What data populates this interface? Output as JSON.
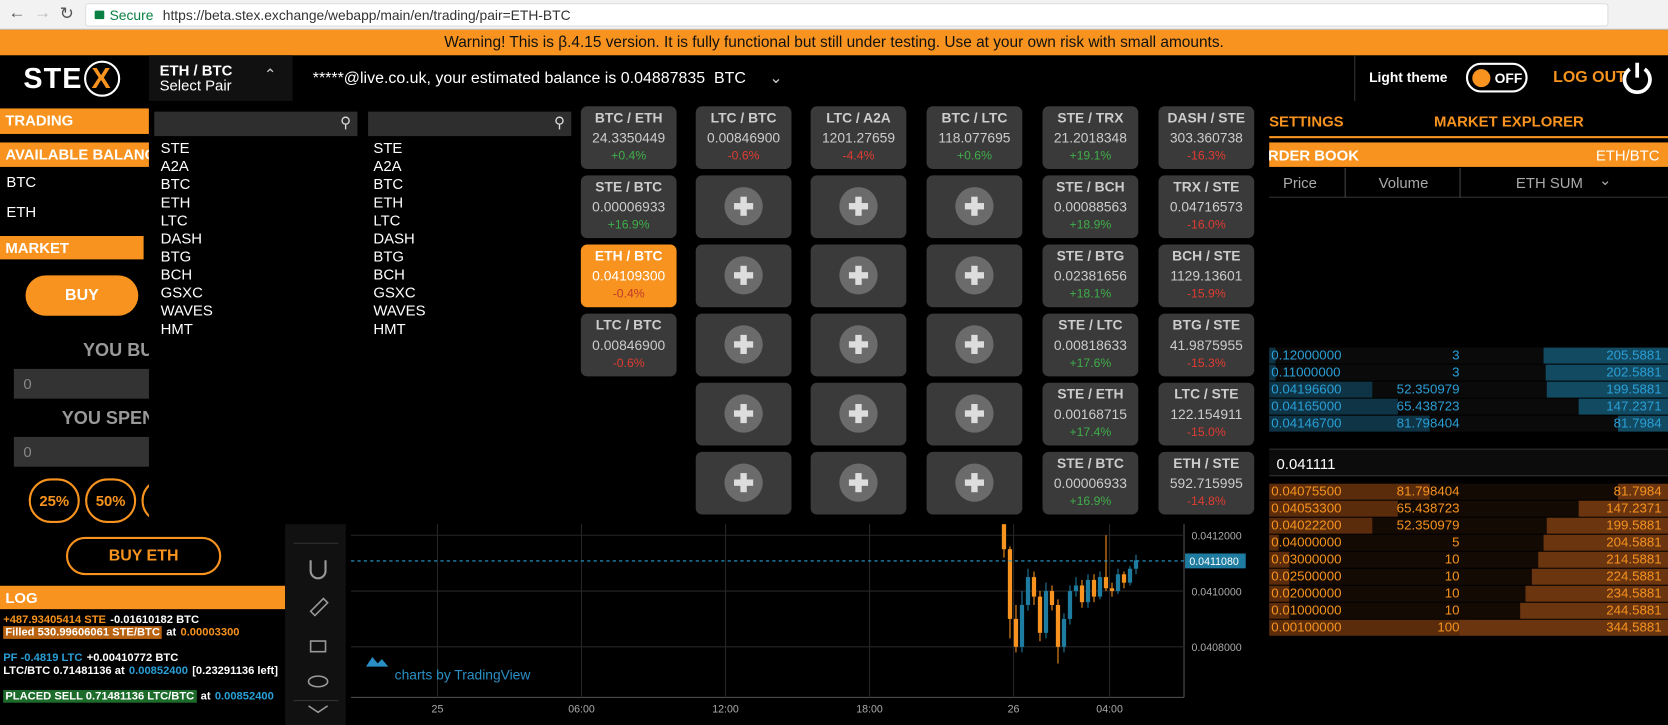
{
  "browser": {
    "secure": "Secure",
    "url": "https://beta.stex.exchange/webapp/main/en/trading/pair=ETH-BTC"
  },
  "warning": "Warning! This is β.4.15 version. It is fully functional but still under testing. Use at your own risk with small amounts.",
  "header": {
    "logo_text": "STE",
    "logo_mark": "X",
    "pair": "ETH / BTC",
    "select_pair": "Select Pair",
    "balance_text": "*****@live.co.uk, your estimated balance is 0.04887835",
    "balance_currency": "BTC",
    "theme_label": "Light theme",
    "theme_toggle": "OFF",
    "logout": "LOG OUT"
  },
  "left": {
    "trading": "TRADING",
    "available_balance": "AVAILABLE BALANCE",
    "balances": [
      "BTC",
      "ETH"
    ],
    "market": "MARKET",
    "buy": "BUY",
    "you_buy": "YOU BUY",
    "buy_amount": "0",
    "you_spend": "YOU SPEND",
    "spend_amount": "0",
    "percent_buttons": [
      "25%",
      "50%"
    ],
    "buy_eth": "BUY ETH"
  },
  "dropdown": {
    "lists": [
      [
        "STE",
        "A2A",
        "BTC",
        "ETH",
        "LTC",
        "DASH",
        "BTG",
        "BCH",
        "GSXC",
        "WAVES",
        "HMT"
      ],
      [
        "STE",
        "A2A",
        "BTC",
        "ETH",
        "LTC",
        "DASH",
        "BTG",
        "BCH",
        "GSXC",
        "WAVES",
        "HMT"
      ]
    ]
  },
  "tiles": [
    [
      {
        "pair": "BTC / ETH",
        "price": "24.3350449",
        "change": "+0.4%"
      },
      {
        "pair": "STE / BTC",
        "price": "0.00006933",
        "change": "+16.9%"
      },
      {
        "pair": "ETH / BTC",
        "price": "0.04109300",
        "change": "-0.4%"
      },
      {
        "pair": "LTC / BTC",
        "price": "0.00846900",
        "change": "-0.6%"
      }
    ],
    [
      {
        "pair": "LTC / BTC",
        "price": "0.00846900",
        "change": "-0.6%"
      },
      null,
      null,
      null,
      null,
      null
    ],
    [
      {
        "pair": "LTC / A2A",
        "price": "1201.27659",
        "change": "-4.4%"
      },
      null,
      null,
      null,
      null,
      null
    ],
    [
      {
        "pair": "BTC / LTC",
        "price": "118.077695",
        "change": "+0.6%"
      },
      null,
      null,
      null,
      null,
      null
    ],
    [
      {
        "pair": "STE / TRX",
        "price": "21.2018348",
        "change": "+19.1%"
      },
      {
        "pair": "STE / BCH",
        "price": "0.00088563",
        "change": "+18.9%"
      },
      {
        "pair": "STE / BTG",
        "price": "0.02381656",
        "change": "+18.1%"
      },
      {
        "pair": "STE / LTC",
        "price": "0.00818633",
        "change": "+17.6%"
      },
      {
        "pair": "STE / ETH",
        "price": "0.00168715",
        "change": "+17.4%"
      },
      {
        "pair": "STE / BTC",
        "price": "0.00006933",
        "change": "+16.9%"
      }
    ],
    [
      {
        "pair": "DASH / STE",
        "price": "303.360738",
        "change": "-16.3%"
      },
      {
        "pair": "TRX / STE",
        "price": "0.04716573",
        "change": "-16.0%"
      },
      {
        "pair": "BCH / STE",
        "price": "1129.13601",
        "change": "-15.9%"
      },
      {
        "pair": "BTG / STE",
        "price": "41.9875955",
        "change": "-15.3%"
      },
      {
        "pair": "LTC / STE",
        "price": "122.154911",
        "change": "-15.0%"
      },
      {
        "pair": "ETH / STE",
        "price": "592.715995",
        "change": "-14.8%"
      }
    ]
  ],
  "order_book": {
    "tabs": [
      "SETTINGS",
      "MARKET EXPLORER"
    ],
    "title": "ORDER BOOK",
    "pair": "ETH/BTC",
    "columns": [
      "Price",
      "Volume",
      "ETH SUM"
    ],
    "asks": [
      [
        "0.12000000",
        "3",
        "205.5881"
      ],
      [
        "0.11000000",
        "3",
        "202.5881"
      ],
      [
        "0.04196600",
        "52.350979",
        "199.5881"
      ],
      [
        "0.04165000",
        "65.438723",
        "147.2371"
      ],
      [
        "0.04146700",
        "81.798404",
        "81.7984"
      ]
    ],
    "mid": "0.041111",
    "bids": [
      [
        "0.04075500",
        "81.798404",
        "81.7984"
      ],
      [
        "0.04053300",
        "65.438723",
        "147.2371"
      ],
      [
        "0.04022200",
        "52.350979",
        "199.5881"
      ],
      [
        "0.04000000",
        "5",
        "204.5881"
      ],
      [
        "0.03000000",
        "10",
        "214.5881"
      ],
      [
        "0.02500000",
        "10",
        "224.5881"
      ],
      [
        "0.02000000",
        "10",
        "234.5881"
      ],
      [
        "0.01000000",
        "10",
        "244.5881"
      ],
      [
        "0.00100000",
        "100",
        "344.5881"
      ]
    ]
  },
  "chart": {
    "xlim": [
      -3.6,
      31.1
    ],
    "ylim": [
      0.04063,
      0.04124
    ],
    "xticks": [
      {
        "value": 0,
        "label": "25"
      },
      {
        "value": 6,
        "label": "06:00"
      },
      {
        "value": 12,
        "label": "12:00"
      },
      {
        "value": 18,
        "label": "18:00"
      },
      {
        "value": 24,
        "label": "26"
      },
      {
        "value": 28,
        "label": "04:00"
      }
    ],
    "yticks": [
      {
        "value": 0.0412,
        "label": "0.0412000"
      },
      {
        "value": 0.041,
        "label": "0.0410000"
      },
      {
        "value": 0.0408,
        "label": "0.0408000"
      }
    ],
    "last_price": {
      "value": 0.041108,
      "label": "0.0411080"
    },
    "attribution": "charts by TradingView",
    "candles": [
      {
        "t": 23.6,
        "open": 0.04124,
        "high": 0.04124,
        "low": 0.04112,
        "close": 0.04115
      },
      {
        "t": 23.85,
        "open": 0.04115,
        "high": 0.04116,
        "low": 0.04083,
        "close": 0.0409
      },
      {
        "t": 24.1,
        "open": 0.0409,
        "high": 0.04095,
        "low": 0.04078,
        "close": 0.0408
      },
      {
        "t": 24.35,
        "open": 0.0408,
        "high": 0.041,
        "low": 0.04078,
        "close": 0.04095
      },
      {
        "t": 24.6,
        "open": 0.04095,
        "high": 0.04108,
        "low": 0.04093,
        "close": 0.04105
      },
      {
        "t": 24.85,
        "open": 0.04105,
        "high": 0.04107,
        "low": 0.04095,
        "close": 0.04098
      },
      {
        "t": 25.1,
        "open": 0.04098,
        "high": 0.041,
        "low": 0.04082,
        "close": 0.04085
      },
      {
        "t": 25.35,
        "open": 0.04085,
        "high": 0.04103,
        "low": 0.04083,
        "close": 0.041
      },
      {
        "t": 25.6,
        "open": 0.041,
        "high": 0.04102,
        "low": 0.04093,
        "close": 0.04095
      },
      {
        "t": 25.85,
        "open": 0.04095,
        "high": 0.04097,
        "low": 0.04074,
        "close": 0.0408
      },
      {
        "t": 26.1,
        "open": 0.0408,
        "high": 0.04092,
        "low": 0.04078,
        "close": 0.0409
      },
      {
        "t": 26.35,
        "open": 0.0409,
        "high": 0.04102,
        "low": 0.04088,
        "close": 0.041
      },
      {
        "t": 26.6,
        "open": 0.041,
        "high": 0.04105,
        "low": 0.04098,
        "close": 0.04102
      },
      {
        "t": 26.85,
        "open": 0.04102,
        "high": 0.04104,
        "low": 0.04094,
        "close": 0.04096
      },
      {
        "t": 27.1,
        "open": 0.04096,
        "high": 0.04106,
        "low": 0.04094,
        "close": 0.04104
      },
      {
        "t": 27.35,
        "open": 0.04104,
        "high": 0.04106,
        "low": 0.04096,
        "close": 0.04098
      },
      {
        "t": 27.6,
        "open": 0.04098,
        "high": 0.04107,
        "low": 0.04097,
        "close": 0.04105
      },
      {
        "t": 27.85,
        "open": 0.04105,
        "high": 0.0412,
        "low": 0.041,
        "close": 0.04101
      },
      {
        "t": 28.1,
        "open": 0.04101,
        "high": 0.04103,
        "low": 0.04098,
        "close": 0.041
      },
      {
        "t": 28.35,
        "open": 0.041,
        "high": 0.04108,
        "low": 0.04099,
        "close": 0.04106
      },
      {
        "t": 28.6,
        "open": 0.04106,
        "high": 0.04107,
        "low": 0.04101,
        "close": 0.04103
      },
      {
        "t": 28.85,
        "open": 0.04103,
        "high": 0.04109,
        "low": 0.04102,
        "close": 0.04108
      },
      {
        "t": 29.1,
        "open": 0.04108,
        "high": 0.04113,
        "low": 0.04106,
        "close": 0.04111
      }
    ]
  },
  "log": {
    "title": "LOG",
    "entries": [
      [
        "+487.93405414 STE",
        "-0.01610182 BTC"
      ],
      [
        "Filled 530.99606061 STE/BTC",
        "at",
        "0.00003300"
      ],
      [
        "PF -0.4819 LTC",
        "+0.00410772 BTC"
      ],
      [
        "LTC/BTC 0.71481136 at",
        "0.00852400",
        "[0.23291136 left]"
      ],
      [
        "PLACED SELL 0.71481136 LTC/BTC",
        "at",
        "0.00852400"
      ]
    ]
  }
}
